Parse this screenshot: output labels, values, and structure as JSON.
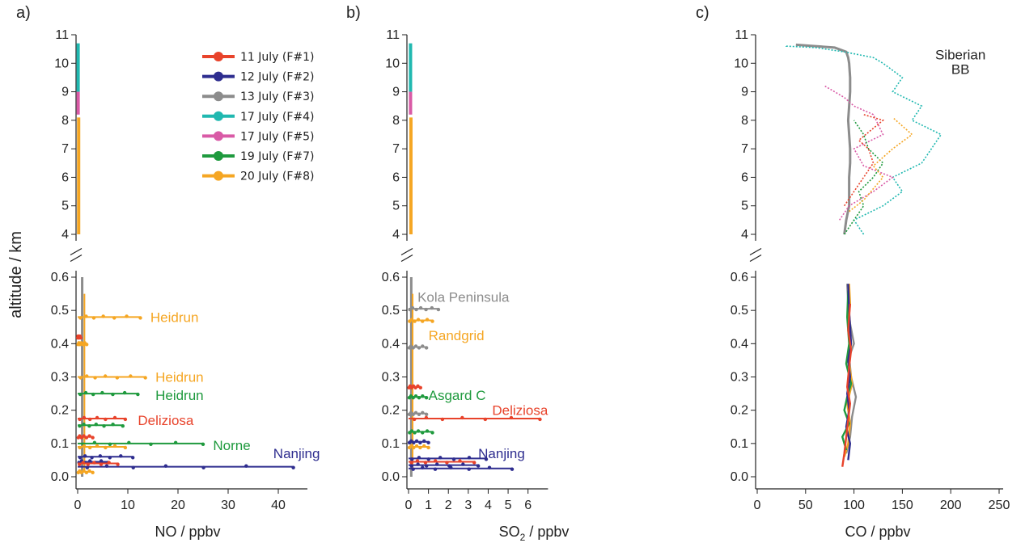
{
  "figure": {
    "ylabel": "altitude / km",
    "colors": {
      "F1": "#e8432b",
      "F2": "#2e2d8f",
      "F3": "#8c8c8c",
      "F4": "#20b8b0",
      "F5": "#d95aa6",
      "F7": "#1f9a3e",
      "F8": "#f5a623"
    },
    "legend": [
      {
        "id": "F1",
        "label": "11 July (F#1)"
      },
      {
        "id": "F2",
        "label": "12 July (F#2)"
      },
      {
        "id": "F3",
        "label": "13 July (F#3)"
      },
      {
        "id": "F4",
        "label": "17 July (F#4)"
      },
      {
        "id": "F5",
        "label": "17 July (F#5)"
      },
      {
        "id": "F7",
        "label": "19 July (F#7)"
      },
      {
        "id": "F8",
        "label": "20 July (F#8)"
      }
    ]
  },
  "chart_data": [
    {
      "panel": "a)",
      "type": "line",
      "xlabel": "NO / ppbv",
      "xlabel_sub": "",
      "xlim": [
        0,
        45
      ],
      "xticks": [
        0,
        10,
        20,
        30,
        40
      ],
      "upper_ylim": [
        4,
        11
      ],
      "upper_yticks": [
        4,
        5,
        6,
        7,
        8,
        9,
        10,
        11
      ],
      "lower_ylim": [
        0,
        0.6
      ],
      "lower_yticks": [
        0.0,
        0.1,
        0.2,
        0.3,
        0.4,
        0.5,
        0.6
      ],
      "upper_segments": [
        {
          "series": "F4",
          "x": 0.1,
          "y0": 9.0,
          "y1": 10.7
        },
        {
          "series": "F5",
          "x": 0.1,
          "y0": 8.2,
          "y1": 9.0
        },
        {
          "series": "F8",
          "x": 0.2,
          "y0": 4.0,
          "y1": 8.1
        }
      ],
      "plumes": [
        {
          "series": "F8",
          "y": 0.48,
          "x_max": 12.5
        },
        {
          "series": "F1",
          "y": 0.42,
          "x_max": 0.6
        },
        {
          "series": "F8",
          "y": 0.4,
          "x_max": 1.8
        },
        {
          "series": "F8",
          "y": 0.3,
          "x_max": 13.5
        },
        {
          "series": "F7",
          "y": 0.25,
          "x_max": 12.0
        },
        {
          "series": "F1",
          "y": 0.175,
          "x_max": 9.5
        },
        {
          "series": "F7",
          "y": 0.155,
          "x_max": 9.0
        },
        {
          "series": "F1",
          "y": 0.12,
          "x_max": 3.0
        },
        {
          "series": "F7",
          "y": 0.1,
          "x_max": 25.0
        },
        {
          "series": "F8",
          "y": 0.09,
          "x_max": 9.5
        },
        {
          "series": "F2",
          "y": 0.06,
          "x_max": 11.0
        },
        {
          "series": "F2",
          "y": 0.045,
          "x_max": 6.0
        },
        {
          "series": "F2",
          "y": 0.03,
          "x_max": 43.0
        },
        {
          "series": "F1",
          "y": 0.04,
          "x_max": 8.0
        },
        {
          "series": "F8",
          "y": 0.015,
          "x_max": 3.0
        }
      ],
      "annotations": [
        {
          "text": "Heidrun",
          "series": "F8",
          "x": 14.5,
          "y": 0.48
        },
        {
          "text": "Heidrun",
          "series": "F8",
          "x": 15.5,
          "y": 0.3
        },
        {
          "text": "Heidrun",
          "series": "F7",
          "x": 15.5,
          "y": 0.245
        },
        {
          "text": "Deliziosa",
          "series": "F1",
          "x": 12.0,
          "y": 0.17
        },
        {
          "text": "Norne",
          "series": "F7",
          "x": 27.0,
          "y": 0.095
        },
        {
          "text": "Nanjing",
          "series": "F2",
          "x": 39.0,
          "y": 0.07
        }
      ]
    },
    {
      "panel": "b)",
      "type": "line",
      "xlabel": "SO",
      "xlabel_sub": "2",
      "xlabel_tail": " / ppbv",
      "xlim": [
        0,
        6.8
      ],
      "xticks": [
        0,
        1,
        2,
        3,
        4,
        5,
        6
      ],
      "upper_ylim": [
        4,
        11
      ],
      "upper_yticks": [
        4,
        5,
        6,
        7,
        8,
        9,
        10,
        11
      ],
      "lower_ylim": [
        0,
        0.6
      ],
      "lower_yticks": [
        0.0,
        0.1,
        0.2,
        0.3,
        0.4,
        0.5,
        0.6
      ],
      "upper_segments": [
        {
          "series": "F4",
          "x": 0.1,
          "y0": 9.0,
          "y1": 10.7
        },
        {
          "series": "F5",
          "x": 0.1,
          "y0": 8.2,
          "y1": 9.0
        },
        {
          "series": "F8",
          "x": 0.12,
          "y0": 4.0,
          "y1": 8.1
        }
      ],
      "plumes": [
        {
          "series": "F3",
          "y": 0.505,
          "x_max": 1.5
        },
        {
          "series": "F8",
          "y": 0.47,
          "x_max": 1.2
        },
        {
          "series": "F3",
          "y": 0.39,
          "x_max": 0.9
        },
        {
          "series": "F1",
          "y": 0.27,
          "x_max": 0.6
        },
        {
          "series": "F7",
          "y": 0.24,
          "x_max": 0.9
        },
        {
          "series": "F3",
          "y": 0.19,
          "x_max": 0.9
        },
        {
          "series": "F1",
          "y": 0.175,
          "x_max": 6.6
        },
        {
          "series": "F7",
          "y": 0.135,
          "x_max": 1.2
        },
        {
          "series": "F2",
          "y": 0.105,
          "x_max": 1.0
        },
        {
          "series": "F8",
          "y": 0.09,
          "x_max": 1.0
        },
        {
          "series": "F2",
          "y": 0.055,
          "x_max": 3.9
        },
        {
          "series": "F1",
          "y": 0.045,
          "x_max": 3.3
        },
        {
          "series": "F2",
          "y": 0.035,
          "x_max": 3.5
        },
        {
          "series": "F2",
          "y": 0.025,
          "x_max": 5.2
        }
      ],
      "annotations": [
        {
          "text": "Kola Peninsula",
          "series": "F3",
          "x": 0.45,
          "y": 0.54
        },
        {
          "text": "Randgrid",
          "series": "F8",
          "x": 1.0,
          "y": 0.425
        },
        {
          "text": "Asgard C",
          "series": "F7",
          "x": 1.0,
          "y": 0.245
        },
        {
          "text": "Deliziosa",
          "series": "F1",
          "x": 4.2,
          "y": 0.2
        },
        {
          "text": "Nanjing",
          "series": "F2",
          "x": 3.5,
          "y": 0.07
        }
      ]
    },
    {
      "panel": "c)",
      "type": "line",
      "xlabel": "CO / ppbv",
      "xlabel_sub": "",
      "xlim": [
        0,
        250
      ],
      "xticks": [
        0,
        50,
        100,
        150,
        200,
        250
      ],
      "upper_ylim": [
        4,
        11
      ],
      "upper_yticks": [
        4,
        5,
        6,
        7,
        8,
        9,
        10,
        11
      ],
      "lower_ylim": [
        0,
        0.6
      ],
      "lower_yticks": [
        0.0,
        0.1,
        0.2,
        0.3,
        0.4,
        0.5,
        0.6
      ],
      "upper_profiles": [
        {
          "series": "F3",
          "x": [
            90,
            92,
            95,
            95,
            95,
            96,
            96,
            95,
            94,
            95,
            96,
            96,
            95,
            94,
            92,
            80,
            60,
            40
          ],
          "y": [
            4.0,
            4.5,
            5.0,
            5.5,
            6.0,
            6.5,
            7.0,
            7.5,
            8.0,
            8.5,
            9.0,
            9.5,
            10.0,
            10.2,
            10.4,
            10.55,
            10.6,
            10.65
          ]
        },
        {
          "series": "F4",
          "x": [
            110,
            100,
            130,
            150,
            140,
            170,
            180,
            190,
            160,
            170,
            140,
            150,
            130,
            120,
            90,
            60,
            30,
            30
          ],
          "y": [
            4.0,
            4.5,
            5.0,
            5.5,
            6.0,
            6.5,
            7.0,
            7.5,
            8.0,
            8.5,
            9.0,
            9.5,
            10.0,
            10.2,
            10.4,
            10.55,
            10.6,
            10.65
          ]
        },
        {
          "series": "F5",
          "x": [
            85,
            95,
            120,
            140,
            110,
            100,
            130,
            120,
            100,
            90,
            80,
            70
          ],
          "y": [
            4.5,
            5.0,
            5.5,
            6.0,
            6.4,
            7.0,
            7.5,
            8.2,
            8.5,
            8.8,
            9.0,
            9.2
          ]
        },
        {
          "series": "F7",
          "x": [
            90,
            100,
            110,
            105,
            120,
            130,
            115,
            110,
            100
          ],
          "y": [
            4.0,
            4.5,
            5.0,
            5.5,
            6.0,
            6.5,
            7.0,
            7.5,
            8.0
          ]
        },
        {
          "series": "F8",
          "x": [
            95,
            110,
            120,
            130,
            120,
            140,
            160,
            150,
            140
          ],
          "y": [
            4.8,
            5.2,
            5.6,
            6.0,
            6.4,
            7.0,
            7.5,
            7.8,
            8.1
          ]
        },
        {
          "series": "F1",
          "x": [
            90,
            100,
            110,
            120,
            115,
            105,
            130,
            110
          ],
          "y": [
            5.0,
            5.5,
            6.0,
            6.5,
            7.0,
            7.3,
            8.0,
            8.2
          ]
        }
      ],
      "lower_profiles": [
        {
          "series": "F3",
          "x": [
            92,
            96,
            98,
            102,
            97,
            95,
            100,
            96,
            94,
            93
          ],
          "y": [
            0.07,
            0.12,
            0.18,
            0.24,
            0.3,
            0.36,
            0.4,
            0.46,
            0.52,
            0.58
          ]
        },
        {
          "series": "F8",
          "x": [
            90,
            94,
            96,
            93,
            98,
            95,
            97,
            94,
            96,
            95
          ],
          "y": [
            0.06,
            0.1,
            0.16,
            0.22,
            0.28,
            0.34,
            0.4,
            0.46,
            0.52,
            0.58
          ]
        },
        {
          "series": "F7",
          "x": [
            92,
            88,
            95,
            90,
            93,
            97,
            92,
            95,
            93,
            94
          ],
          "y": [
            0.08,
            0.12,
            0.16,
            0.2,
            0.24,
            0.28,
            0.34,
            0.4,
            0.48,
            0.56
          ]
        },
        {
          "series": "F2",
          "x": [
            94,
            96,
            92,
            95,
            93,
            96,
            94,
            97,
            95,
            94
          ],
          "y": [
            0.05,
            0.1,
            0.15,
            0.2,
            0.25,
            0.3,
            0.35,
            0.4,
            0.5,
            0.58
          ]
        },
        {
          "series": "F1",
          "x": [
            88,
            90,
            92,
            94,
            96,
            93,
            95,
            97,
            94,
            96
          ],
          "y": [
            0.03,
            0.07,
            0.12,
            0.17,
            0.22,
            0.27,
            0.33,
            0.38,
            0.44,
            0.52
          ]
        }
      ],
      "annotations": [
        {
          "text": "Siberian",
          "series": "none",
          "x": 210,
          "y": 10.3
        },
        {
          "text": "BB",
          "series": "none",
          "x": 210,
          "y": 9.8
        }
      ]
    }
  ]
}
